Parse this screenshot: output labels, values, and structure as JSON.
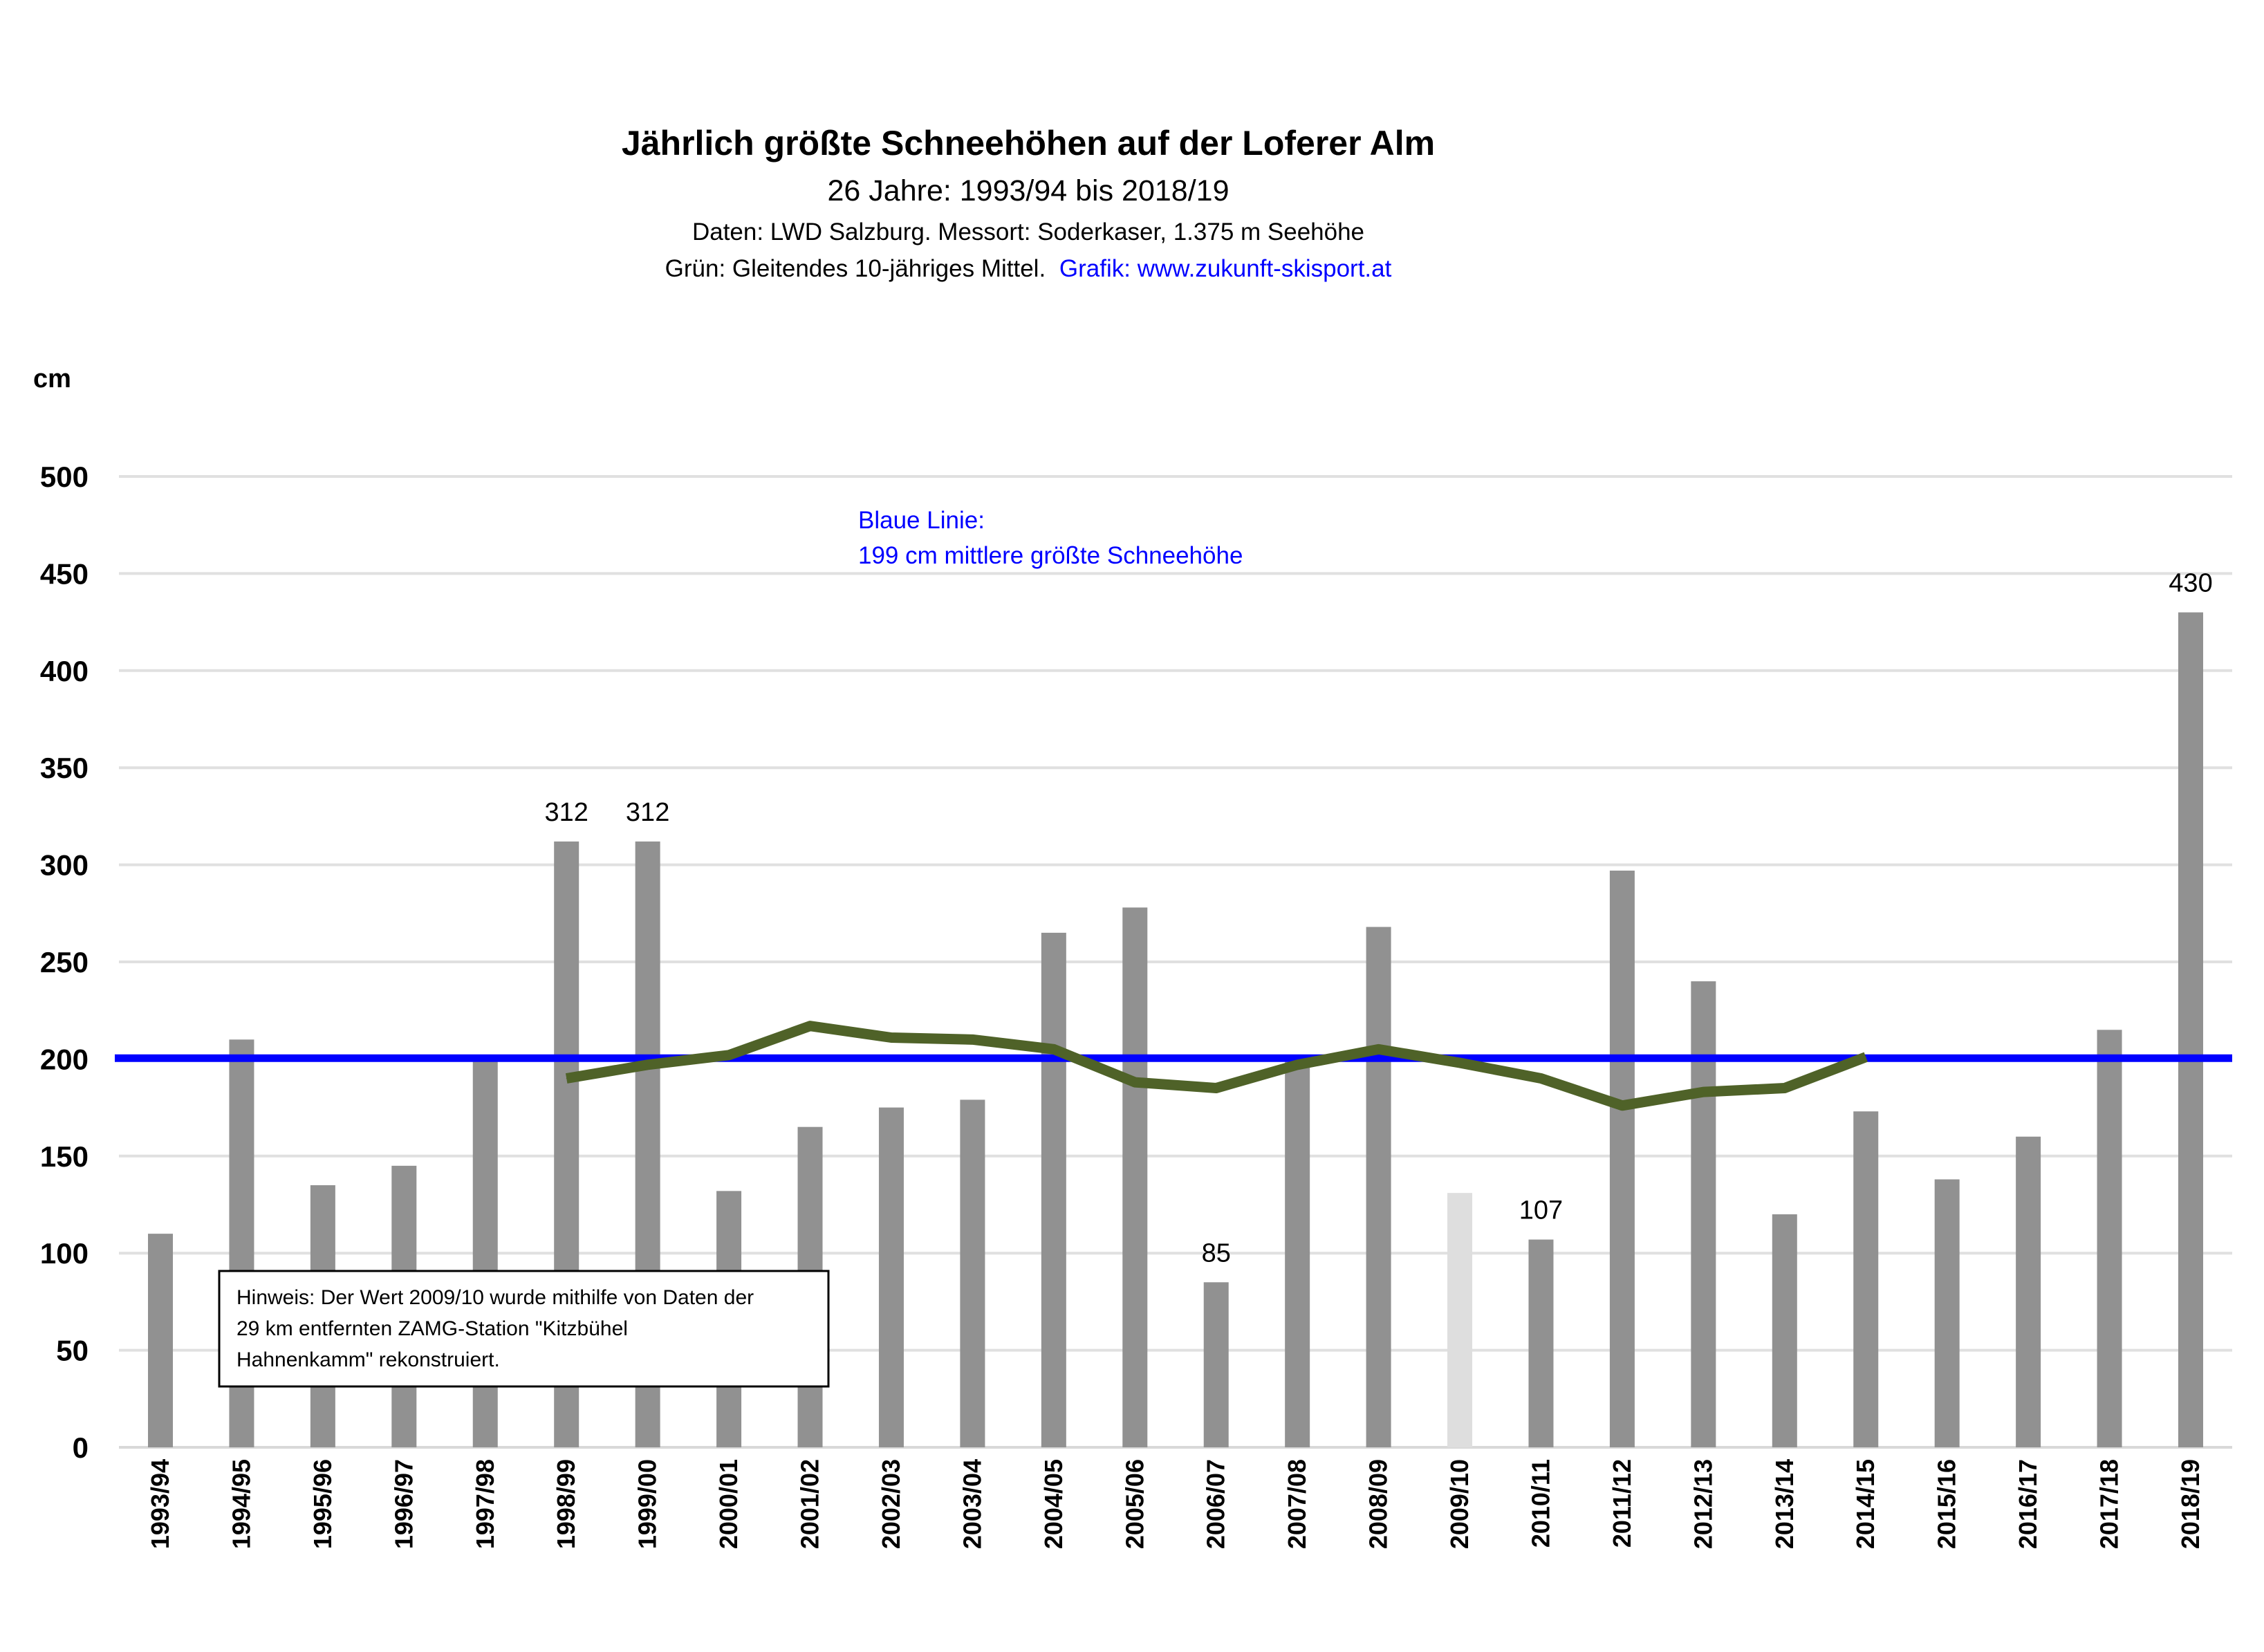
{
  "chart_data": {
    "type": "bar",
    "title": "Jährlich größte Schneehöhen auf der Loferer Alm",
    "subtitle": "26 Jahre: 1993/94 bis 2018/19",
    "source_line": "Daten: LWD Salzburg. Messort: Soderkaser, 1.375 m Seehöhe",
    "legend_line_black": "Grün: Gleitendes 10-jähriges Mittel.",
    "legend_line_blue": "Grafik: www.zukunft-skisport.at",
    "ylabel": "cm",
    "xlabel": "",
    "ylim": [
      0,
      500
    ],
    "yticks": [
      0,
      50,
      100,
      150,
      200,
      250,
      300,
      350,
      400,
      450,
      500
    ],
    "grid": true,
    "categories": [
      "1993/94",
      "1994/95",
      "1995/96",
      "1996/97",
      "1997/98",
      "1998/99",
      "1999/00",
      "2000/01",
      "2001/02",
      "2002/03",
      "2003/04",
      "2004/05",
      "2005/06",
      "2006/07",
      "2007/08",
      "2008/09",
      "2009/10",
      "2010/11",
      "2011/12",
      "2012/13",
      "2013/14",
      "2014/15",
      "2015/16",
      "2016/17",
      "2017/18",
      "2018/19"
    ],
    "series": [
      {
        "name": "Jährlich größte Schneehöhe",
        "type": "bar",
        "color": "#919191",
        "highlight_color": "#dedede",
        "highlight_category": "2009/10",
        "values": [
          110,
          210,
          135,
          145,
          202,
          312,
          312,
          132,
          165,
          175,
          179,
          265,
          278,
          85,
          200,
          268,
          131,
          107,
          297,
          240,
          120,
          173,
          138,
          160,
          215,
          430
        ]
      },
      {
        "name": "Gleitendes 10-jähriges Mittel",
        "type": "line",
        "color": "#4f6228",
        "values": [
          null,
          null,
          null,
          null,
          null,
          190,
          197,
          202,
          217,
          211,
          210,
          205,
          188,
          185,
          197,
          205,
          198,
          190,
          176,
          183,
          185,
          201,
          null,
          null,
          null,
          null
        ]
      },
      {
        "name": "Mittlere größte Schneehöhe",
        "type": "hline",
        "color": "#0000ff",
        "value": 199
      }
    ],
    "data_labels": [
      {
        "category": "1998/99",
        "text": "312"
      },
      {
        "category": "1999/00",
        "text": "312"
      },
      {
        "category": "2006/07",
        "text": "85"
      },
      {
        "category": "2010/11",
        "text": "107"
      },
      {
        "category": "2018/19",
        "text": "430"
      }
    ],
    "annotations": {
      "blue_line_title": "Blaue Linie:",
      "blue_line_text": "199 cm mittlere größte Schneehöhe",
      "note_lines": [
        "Hinweis: Der Wert 2009/10 wurde mithilfe von Daten der",
        "29 km entfernten ZAMG-Station \"Kitzbühel",
        "Hahnenkamm\" rekonstruiert."
      ]
    }
  }
}
